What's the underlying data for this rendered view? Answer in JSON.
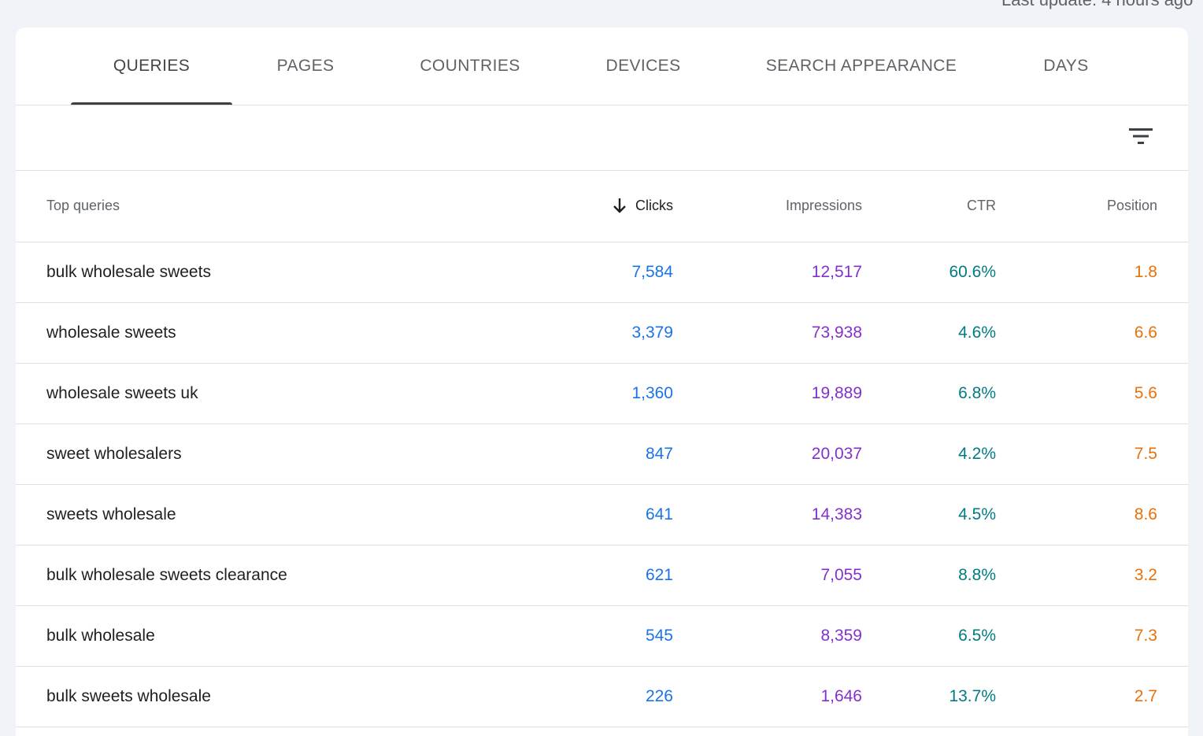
{
  "header": {
    "last_update": "Last update: 4 hours ago"
  },
  "tabs": [
    {
      "label": "QUERIES",
      "active": true
    },
    {
      "label": "PAGES",
      "active": false
    },
    {
      "label": "COUNTRIES",
      "active": false
    },
    {
      "label": "DEVICES",
      "active": false
    },
    {
      "label": "SEARCH APPEARANCE",
      "active": false
    },
    {
      "label": "DAYS",
      "active": false
    }
  ],
  "filter": {
    "icon": "filter-list-icon"
  },
  "table": {
    "sort_icon": "arrow-down-icon",
    "headers": {
      "query": "Top queries",
      "clicks": "Clicks",
      "impressions": "Impressions",
      "ctr": "CTR",
      "position": "Position"
    },
    "sorted_by": "Clicks",
    "rows": [
      {
        "query": "bulk wholesale sweets",
        "clicks": "7,584",
        "impressions": "12,517",
        "ctr": "60.6%",
        "position": "1.8"
      },
      {
        "query": "wholesale sweets",
        "clicks": "3,379",
        "impressions": "73,938",
        "ctr": "4.6%",
        "position": "6.6"
      },
      {
        "query": "wholesale sweets uk",
        "clicks": "1,360",
        "impressions": "19,889",
        "ctr": "6.8%",
        "position": "5.6"
      },
      {
        "query": "sweet wholesalers",
        "clicks": "847",
        "impressions": "20,037",
        "ctr": "4.2%",
        "position": "7.5"
      },
      {
        "query": "sweets wholesale",
        "clicks": "641",
        "impressions": "14,383",
        "ctr": "4.5%",
        "position": "8.6"
      },
      {
        "query": "bulk wholesale sweets clearance",
        "clicks": "621",
        "impressions": "7,055",
        "ctr": "8.8%",
        "position": "3.2"
      },
      {
        "query": "bulk wholesale",
        "clicks": "545",
        "impressions": "8,359",
        "ctr": "6.5%",
        "position": "7.3"
      },
      {
        "query": "bulk sweets wholesale",
        "clicks": "226",
        "impressions": "1,646",
        "ctr": "13.7%",
        "position": "2.7"
      }
    ]
  },
  "colors": {
    "clicks": "#1a73e8",
    "impressions": "#8430ce",
    "ctr": "#007b83",
    "position": "#e8710a"
  }
}
